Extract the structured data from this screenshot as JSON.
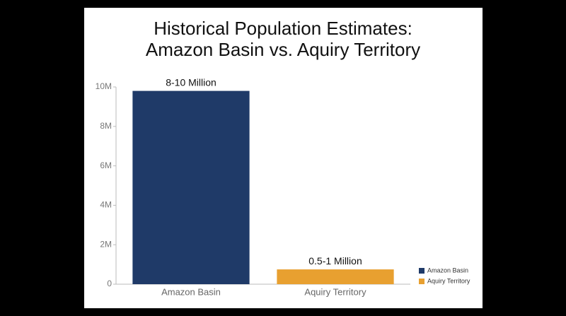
{
  "chart_data": {
    "type": "bar",
    "title": [
      "Historical Population Estimates:",
      "Amazon Basin vs. Aquiry Territory"
    ],
    "categories": [
      "Amazon Basin",
      "Aquiry Territory"
    ],
    "series": [
      {
        "name": "Amazon Basin",
        "color": "#1f3a68",
        "values": [
          9800000,
          null
        ]
      },
      {
        "name": "Aquiry Territory",
        "color": "#e8a030",
        "values": [
          null,
          750000
        ]
      }
    ],
    "annotations": [
      "8-10 Million",
      "0.5-1 Million"
    ],
    "ylim": [
      0,
      10000000
    ],
    "yticks": [
      0,
      {
        "value": 2000000,
        "label": "2M"
      },
      {
        "value": 4000000,
        "label": "4M"
      },
      {
        "value": 6000000,
        "label": "6M"
      },
      {
        "value": 8000000,
        "label": "8M"
      },
      {
        "value": 10000000,
        "label": "10M"
      }
    ],
    "grid": false,
    "legend": "bottom-right"
  }
}
